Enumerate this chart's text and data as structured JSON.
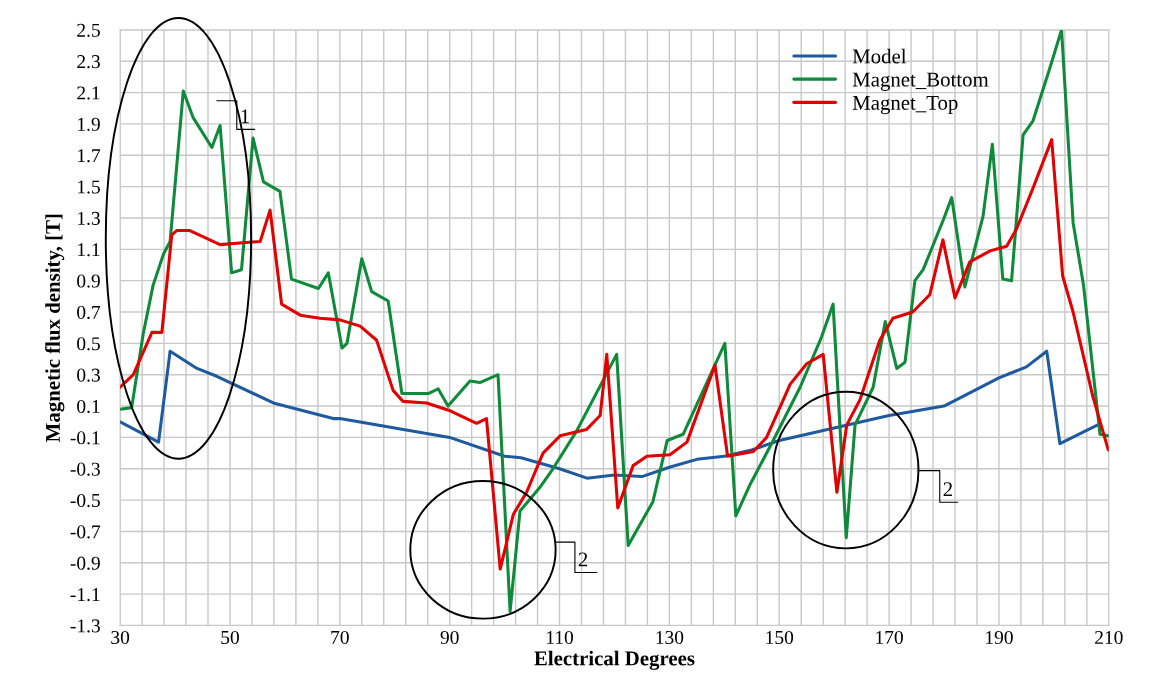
{
  "chart_data": {
    "type": "line",
    "xlabel": "Electrical Degrees",
    "ylabel": "Magnetic flux density, [T]",
    "xlim": [
      30,
      210
    ],
    "xticks": [
      30,
      {
        "value": 34,
        "label": null
      },
      {
        "value": 38,
        "label": null
      },
      {
        "value": 42,
        "label": null
      },
      {
        "value": 46,
        "label": null
      },
      50,
      {
        "value": 54,
        "label": null
      },
      {
        "value": 58,
        "label": null
      },
      {
        "value": 62,
        "label": null
      },
      {
        "value": 66,
        "label": null
      },
      70,
      {
        "value": 74,
        "label": null
      },
      {
        "value": 78,
        "label": null
      },
      {
        "value": 82,
        "label": null
      },
      {
        "value": 86,
        "label": null
      },
      90,
      {
        "value": 94,
        "label": null
      },
      {
        "value": 98,
        "label": null
      },
      {
        "value": 102,
        "label": null
      },
      {
        "value": 106,
        "label": null
      },
      110,
      {
        "value": 114,
        "label": null
      },
      {
        "value": 118,
        "label": null
      },
      {
        "value": 122,
        "label": null
      },
      {
        "value": 126,
        "label": null
      },
      130,
      {
        "value": 134,
        "label": null
      },
      {
        "value": 138,
        "label": null
      },
      {
        "value": 142,
        "label": null
      },
      {
        "value": 146,
        "label": null
      },
      150,
      {
        "value": 154,
        "label": null
      },
      {
        "value": 158,
        "label": null
      },
      {
        "value": 162,
        "label": null
      },
      {
        "value": 166,
        "label": null
      },
      170,
      {
        "value": 174,
        "label": null
      },
      {
        "value": 178,
        "label": null
      },
      {
        "value": 182,
        "label": null
      },
      {
        "value": 186,
        "label": null
      },
      190,
      {
        "value": 194,
        "label": null
      },
      {
        "value": 198,
        "label": null
      },
      {
        "value": 202,
        "label": null
      },
      {
        "value": 206,
        "label": null
      },
      210
    ],
    "ylim": [
      -1.3,
      2.5
    ],
    "yticks": [
      -1.3,
      -1.1,
      -0.9,
      -0.7,
      -0.5,
      -0.3,
      -0.1,
      0.1,
      0.3,
      0.5,
      0.7,
      0.9,
      1.1,
      1.3,
      1.5,
      1.7,
      1.9,
      2.1,
      2.3,
      2.5
    ],
    "grid": true,
    "legend": "top right",
    "marker": "none",
    "line_style": "solid",
    "series": [
      {
        "name": "Model",
        "color": "#1f5a9e",
        "x": [
          30,
          37,
          39.1,
          44,
          47.6,
          57.9,
          68.8,
          70,
          80,
          90,
          100,
          103,
          110,
          115,
          120,
          125,
          130,
          135,
          140,
          145,
          150,
          160,
          170,
          180,
          190,
          195,
          198.7,
          201.1,
          208
        ],
        "values": [
          0.0,
          -0.13,
          0.45,
          0.34,
          0.29,
          0.12,
          0.02,
          0.02,
          -0.04,
          -0.1,
          -0.22,
          -0.23,
          -0.3,
          -0.36,
          -0.34,
          -0.35,
          -0.29,
          -0.24,
          -0.22,
          -0.18,
          -0.12,
          -0.04,
          0.04,
          0.1,
          0.28,
          0.35,
          0.45,
          -0.14,
          -0.02
        ]
      },
      {
        "name": "Magnet_Bottom",
        "color": "#0f8a3a",
        "x": [
          30,
          32.1,
          34.2,
          36,
          37.9,
          39.1,
          41.5,
          43.3,
          46.7,
          48.2,
          50.3,
          52.1,
          54.2,
          56.1,
          59.1,
          61.2,
          66.1,
          67.9,
          70.4,
          71.3,
          74,
          75.8,
          78.8,
          81.3,
          86.1,
          87.9,
          89.7,
          93.7,
          95.5,
          98.8,
          101,
          102.8,
          106.4,
          108.8,
          113.1,
          120.4,
          122.5,
          127,
          129.6,
          132.5,
          140.1,
          142.1,
          144.7,
          148.9,
          153.8,
          157.7,
          159.8,
          162.2,
          163.8,
          167.1,
          169.3,
          171.4,
          172.9,
          174.7,
          176.2,
          179.9,
          181.4,
          183.8,
          187.1,
          188.8,
          190.7,
          192.3,
          194.4,
          196.2,
          199.3,
          201.4,
          203.5,
          205.4,
          208.4,
          209.9
        ],
        "values": [
          0.08,
          0.09,
          0.56,
          0.87,
          1.07,
          1.15,
          2.11,
          1.94,
          1.75,
          1.89,
          0.95,
          0.97,
          1.81,
          1.53,
          1.47,
          0.91,
          0.85,
          0.95,
          0.47,
          0.5,
          1.04,
          0.83,
          0.77,
          0.18,
          0.18,
          0.21,
          0.1,
          0.26,
          0.25,
          0.3,
          -1.21,
          -0.57,
          -0.42,
          -0.3,
          -0.06,
          0.43,
          -0.79,
          -0.51,
          -0.12,
          -0.08,
          0.5,
          -0.6,
          -0.4,
          -0.12,
          0.22,
          0.54,
          0.75,
          -0.74,
          -0.02,
          0.22,
          0.64,
          0.34,
          0.38,
          0.9,
          0.97,
          1.29,
          1.43,
          0.86,
          1.31,
          1.77,
          0.91,
          0.9,
          1.83,
          1.92,
          2.26,
          2.5,
          1.27,
          0.87,
          -0.08,
          -0.09
        ]
      },
      {
        "name": "Magnet_Top",
        "color": "#e00000",
        "x": [
          30,
          32.4,
          35.8,
          37.6,
          39.4,
          40.3,
          42.7,
          48.2,
          51.8,
          55.5,
          57.3,
          59.4,
          62.8,
          66.4,
          70,
          73.7,
          76.7,
          79.7,
          81.5,
          85.8,
          90.1,
          94.9,
          96.7,
          99.2,
          101.6,
          104,
          107,
          110.1,
          114.9,
          117.4,
          118.6,
          120.6,
          123.4,
          125.9,
          130.1,
          133.2,
          138.3,
          140.6,
          145.3,
          147.7,
          152,
          155,
          158,
          160.5,
          162.3,
          164.7,
          168.3,
          170.7,
          174.3,
          177.4,
          179.8,
          182,
          184.7,
          188.4,
          191.4,
          193.2,
          196.2,
          199.6,
          201.6,
          203.5,
          207.1,
          209.9
        ],
        "values": [
          0.22,
          0.3,
          0.57,
          0.57,
          1.19,
          1.22,
          1.22,
          1.13,
          1.14,
          1.15,
          1.35,
          0.75,
          0.68,
          0.66,
          0.65,
          0.61,
          0.52,
          0.2,
          0.13,
          0.12,
          0.07,
          -0.01,
          0.02,
          -0.94,
          -0.59,
          -0.45,
          -0.2,
          -0.09,
          -0.05,
          0.04,
          0.43,
          -0.55,
          -0.28,
          -0.22,
          -0.21,
          -0.13,
          0.36,
          -0.22,
          -0.19,
          -0.1,
          0.24,
          0.37,
          0.43,
          -0.45,
          -0.02,
          0.14,
          0.52,
          0.66,
          0.7,
          0.81,
          1.16,
          0.79,
          1.02,
          1.09,
          1.12,
          1.23,
          1.49,
          1.8,
          0.93,
          0.7,
          0.16,
          -0.18
        ]
      }
    ],
    "annotations": [
      "1",
      "2",
      "2"
    ]
  }
}
